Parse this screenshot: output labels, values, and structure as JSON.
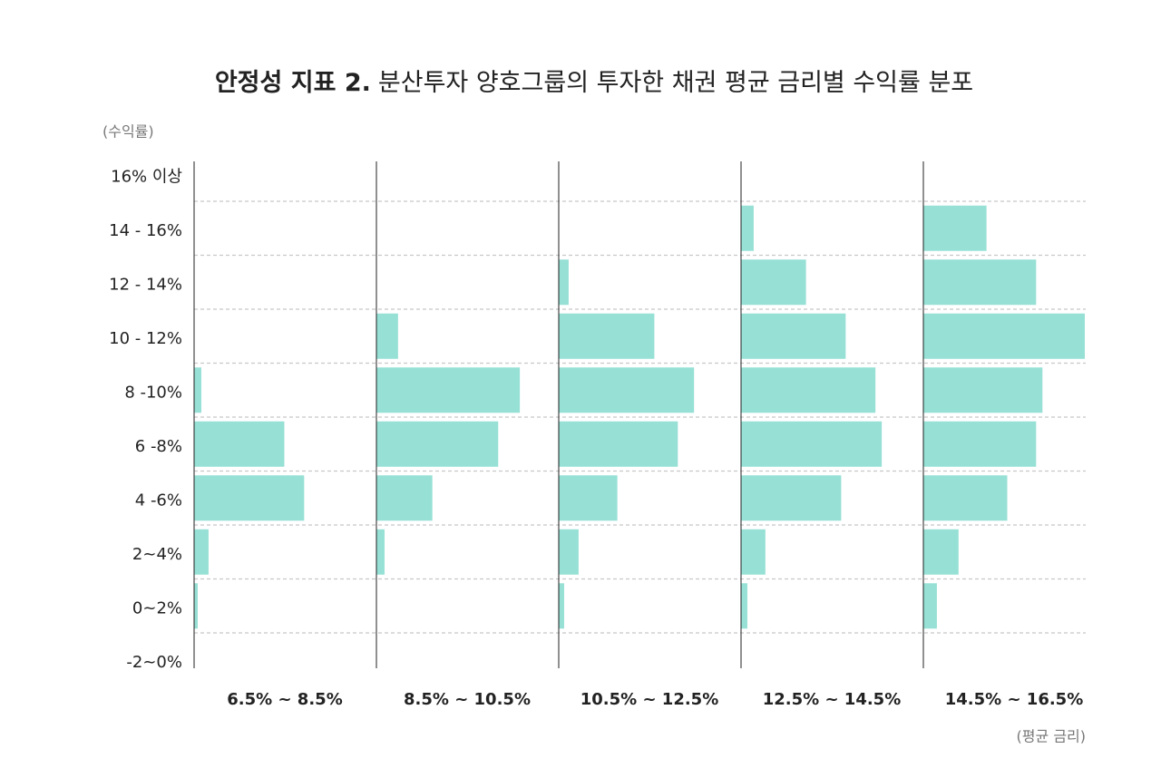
{
  "chart_data": {
    "type": "bar",
    "orientation": "horizontal",
    "title": "안정성 지표 2.",
    "subtitle": "분산투자 양호그룹의 투자한 채권 평균 금리별 수익률 분포",
    "y_label": "(수익률)",
    "x_label": "(평균 금리)",
    "categories": [
      "16% 이상",
      "14 - 16%",
      "12 - 14%",
      "10 - 12%",
      "8 -10%",
      "6 -8%",
      "4 -6%",
      "2~4%",
      "0~2%",
      "-2~0%"
    ],
    "xlim": [
      0,
      180
    ],
    "grid": true,
    "series": [
      {
        "name": "6.5% ~ 8.5%",
        "color": "#96e0d5",
        "values": [
          0,
          0,
          0,
          0,
          8,
          100,
          122,
          16,
          4,
          0
        ]
      },
      {
        "name": "8.5% ~ 10.5%",
        "color": "#96e0d5",
        "values": [
          0,
          0,
          0,
          24,
          159,
          135,
          62,
          9,
          0,
          0
        ]
      },
      {
        "name": "10.5% ~ 12.5%",
        "color": "#96e0d5",
        "values": [
          0,
          0,
          11,
          106,
          150,
          132,
          65,
          22,
          6,
          0
        ]
      },
      {
        "name": "12.5% ~ 14.5%",
        "color": "#96e0d5",
        "values": [
          0,
          14,
          72,
          116,
          149,
          156,
          111,
          27,
          7,
          0
        ]
      },
      {
        "name": "14.5% ~ 16.5%",
        "color": "#96e0d5",
        "values": [
          0,
          70,
          125,
          179,
          132,
          125,
          93,
          39,
          15,
          0
        ]
      }
    ]
  }
}
